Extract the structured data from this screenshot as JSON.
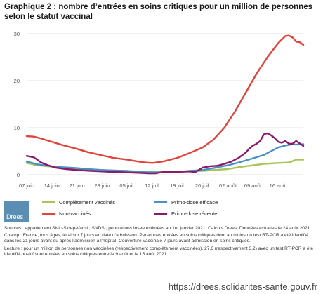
{
  "title": "Graphique 2 : nombre d’entrées en soins critiques pour un million de personnes selon le statut vaccinal",
  "chart_data": {
    "type": "line",
    "x": [
      "07 juin",
      "14 juin",
      "21 juin",
      "28 juin",
      "05 juil.",
      "12 juil.",
      "19 juil.",
      "26 juil.",
      "02 août",
      "09 août",
      "16 août"
    ],
    "ylim": [
      0,
      30
    ],
    "yticks": [
      0,
      10,
      20,
      30
    ],
    "series": [
      {
        "name": "Complètement vaccinés",
        "color": "#a7c65a",
        "points": [
          [
            0,
            2.5
          ],
          [
            3,
            2.0
          ],
          [
            7,
            1.7
          ],
          [
            10,
            1.5
          ],
          [
            14,
            1.3
          ],
          [
            17,
            1.1
          ],
          [
            21,
            1.0
          ],
          [
            24,
            0.9
          ],
          [
            28,
            0.8
          ],
          [
            31,
            0.7
          ],
          [
            35,
            0.6
          ],
          [
            38,
            0.6
          ],
          [
            42,
            0.6
          ],
          [
            45,
            0.7
          ],
          [
            49,
            0.8
          ],
          [
            52,
            1.0
          ],
          [
            56,
            1.2
          ],
          [
            59,
            1.6
          ],
          [
            63,
            2.0
          ],
          [
            66,
            2.3
          ],
          [
            70,
            2.5
          ],
          [
            73,
            2.6
          ],
          [
            75,
            3.2
          ],
          [
            77,
            3.2
          ]
        ]
      },
      {
        "name": "Non-vaccinés",
        "color": "#e0443c",
        "points": [
          [
            0,
            8.2
          ],
          [
            2,
            8.1
          ],
          [
            4,
            7.7
          ],
          [
            7,
            7.0
          ],
          [
            10,
            6.3
          ],
          [
            14,
            5.5
          ],
          [
            17,
            4.8
          ],
          [
            21,
            4.1
          ],
          [
            24,
            3.6
          ],
          [
            28,
            3.2
          ],
          [
            31,
            2.8
          ],
          [
            33,
            2.6
          ],
          [
            35,
            2.5
          ],
          [
            38,
            2.8
          ],
          [
            42,
            3.6
          ],
          [
            45,
            4.5
          ],
          [
            49,
            5.8
          ],
          [
            52,
            7.5
          ],
          [
            55,
            10.0
          ],
          [
            58,
            13.5
          ],
          [
            61,
            17.5
          ],
          [
            64,
            21.5
          ],
          [
            67,
            25.0
          ],
          [
            70,
            28.0
          ],
          [
            72,
            29.5
          ],
          [
            73,
            29.6
          ],
          [
            74,
            29.2
          ],
          [
            75,
            28.3
          ],
          [
            76,
            28.2
          ],
          [
            77,
            27.6
          ]
        ]
      },
      {
        "name": "Primo-dose efficace",
        "color": "#4a90c4",
        "points": [
          [
            0,
            2.8
          ],
          [
            3,
            2.2
          ],
          [
            7,
            1.8
          ],
          [
            10,
            1.6
          ],
          [
            14,
            1.4
          ],
          [
            17,
            1.2
          ],
          [
            21,
            1.0
          ],
          [
            24,
            0.9
          ],
          [
            28,
            0.8
          ],
          [
            31,
            0.6
          ],
          [
            35,
            0.5
          ],
          [
            38,
            0.5
          ],
          [
            42,
            0.6
          ],
          [
            45,
            0.8
          ],
          [
            49,
            1.0
          ],
          [
            52,
            1.4
          ],
          [
            56,
            2.0
          ],
          [
            59,
            2.6
          ],
          [
            63,
            3.5
          ],
          [
            66,
            4.2
          ],
          [
            68,
            5.0
          ],
          [
            70,
            5.8
          ],
          [
            72,
            6.2
          ],
          [
            74,
            6.5
          ],
          [
            75,
            6.4
          ],
          [
            77,
            6.5
          ]
        ]
      },
      {
        "name": "Primo-dose récente",
        "color": "#8b1a6b",
        "points": [
          [
            0,
            4.0
          ],
          [
            2,
            3.7
          ],
          [
            4,
            2.6
          ],
          [
            6,
            2.0
          ],
          [
            8,
            1.5
          ],
          [
            11,
            1.2
          ],
          [
            14,
            1.0
          ],
          [
            18,
            0.8
          ],
          [
            21,
            0.7
          ],
          [
            24,
            0.6
          ],
          [
            28,
            0.5
          ],
          [
            31,
            0.4
          ],
          [
            34,
            0.3
          ],
          [
            36,
            0.3
          ],
          [
            38,
            0.6
          ],
          [
            42,
            0.6
          ],
          [
            45,
            0.7
          ],
          [
            47,
            0.6
          ],
          [
            49,
            1.5
          ],
          [
            51,
            1.8
          ],
          [
            53,
            1.9
          ],
          [
            55,
            2.3
          ],
          [
            57,
            2.8
          ],
          [
            59,
            3.6
          ],
          [
            61,
            4.7
          ],
          [
            62,
            5.6
          ],
          [
            63,
            6.2
          ],
          [
            64,
            6.6
          ],
          [
            65,
            7.2
          ],
          [
            66,
            8.6
          ],
          [
            67,
            8.8
          ],
          [
            68,
            8.4
          ],
          [
            69,
            7.8
          ],
          [
            70,
            7.0
          ],
          [
            71,
            6.8
          ],
          [
            72,
            7.2
          ],
          [
            73,
            6.6
          ],
          [
            74,
            6.6
          ],
          [
            75,
            7.2
          ],
          [
            77,
            6.1
          ]
        ]
      }
    ]
  },
  "legend": [
    {
      "label": "Complètement vaccinés",
      "color": "#a7c65a"
    },
    {
      "label": "Primo-dose efficace",
      "color": "#4a90c4"
    },
    {
      "label": "Non-vaccinés",
      "color": "#e0443c"
    },
    {
      "label": "Primo-dose récente",
      "color": "#8b1a6b"
    }
  ],
  "logo_text": "Drees",
  "notes": {
    "sources": "Sources : appariement Sivic-Sidep-Vacsi ; SNDS ; populations Insee estimées au 1er janvier 2021. Calculs Drees. Données extraites le 24 août 2021.",
    "champ": "Champ : France, tous âges, total sur 7 jours en date d’admission. Personnes entrées en soins critiques dont au moins un test RT-PCR a été identifié dans les 21 jours avant ou après l’admission à l’hôpital. Couverture vaccinale 7 jours avant admission en soins critiques.",
    "lecture": "Lecture : pour un million de personnes non vaccinées (respectivement complètement vaccinées), 27,6 (respectivement 3,2) avec un test RT-PCR a été identifié positif sont entrées en soins critiques entre le 9 août et le 15 août 2021."
  },
  "url": "https://drees.solidarites-sante.gouv.fr"
}
